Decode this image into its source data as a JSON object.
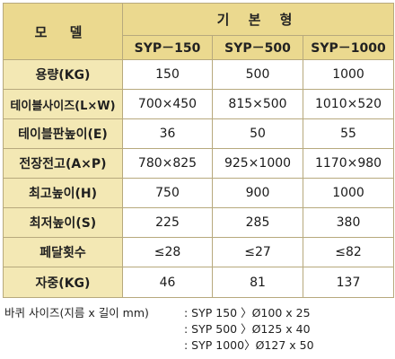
{
  "table": {
    "corner": "모 델",
    "group_header": "기 본 형",
    "models": [
      "SYP－150",
      "SYP－500",
      "SYP－1000"
    ],
    "rows": [
      {
        "label": "용량(KG)",
        "values": [
          "150",
          "500",
          "1000"
        ]
      },
      {
        "label": "테이블사이즈(L×W)",
        "values": [
          "700×450",
          "815×500",
          "1010×520"
        ]
      },
      {
        "label": "테이블판높이(E)",
        "values": [
          "36",
          "50",
          "55"
        ]
      },
      {
        "label": "전장전고(A×P)",
        "values": [
          "780×825",
          "925×1000",
          "1170×980"
        ]
      },
      {
        "label": "최고높이(H)",
        "values": [
          "750",
          "900",
          "1000"
        ]
      },
      {
        "label": "최저높이(S)",
        "values": [
          "225",
          "285",
          "380"
        ]
      },
      {
        "label": "페달횟수",
        "values": [
          "≤28",
          "≤27",
          "≤82"
        ]
      },
      {
        "label": "자중(KG)",
        "values": [
          "46",
          "81",
          "137"
        ]
      }
    ]
  },
  "wheel": {
    "label": "바퀴 사이즈(지름 x 길이 mm)",
    "entries": [
      ": SYP 150 〉Ø100 x 25",
      ": SYP 500 〉Ø125 x 40",
      ": SYP 1000〉Ø127 x 50"
    ]
  }
}
